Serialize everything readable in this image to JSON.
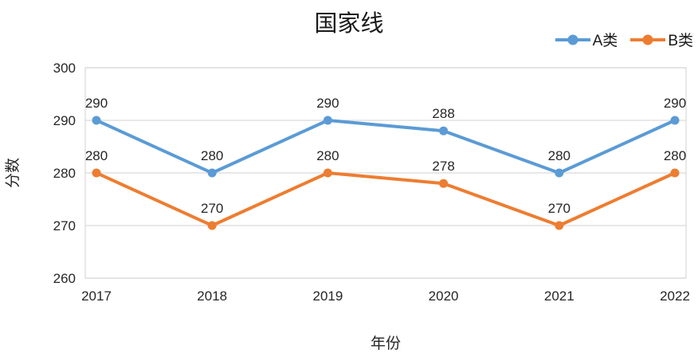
{
  "chart_data": {
    "type": "line",
    "title": "国家线",
    "xlabel": "年份",
    "ylabel": "分数",
    "categories": [
      "2017",
      "2018",
      "2019",
      "2020",
      "2021",
      "2022"
    ],
    "series": [
      {
        "name": "A类",
        "color": "#5B9BD5",
        "values": [
          290,
          280,
          290,
          288,
          280,
          290
        ]
      },
      {
        "name": "B类",
        "color": "#ED7D31",
        "values": [
          280,
          270,
          280,
          278,
          270,
          280
        ]
      }
    ],
    "ylim": [
      260,
      300
    ],
    "yticks": [
      260,
      270,
      280,
      290,
      300
    ],
    "grid": true,
    "grid_color": "#D9D9D9",
    "text_color": "#262626",
    "legend_position": "top-right",
    "marker": "circle"
  }
}
